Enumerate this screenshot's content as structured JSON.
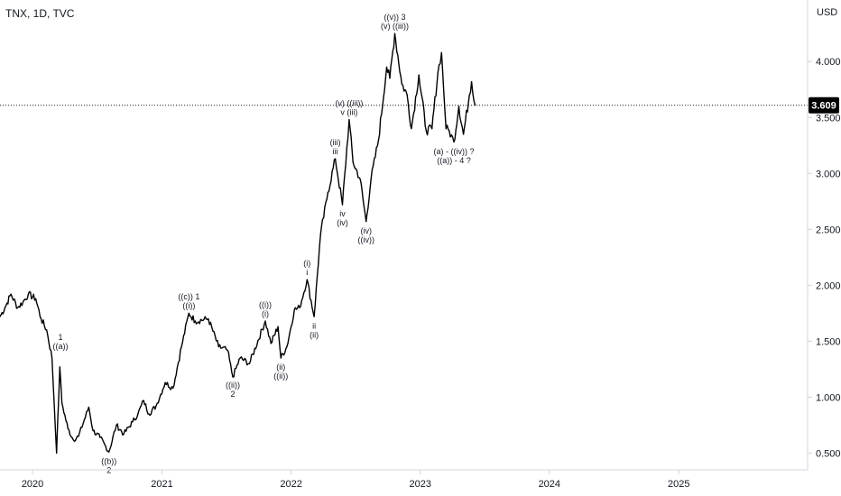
{
  "header": {
    "symbol": "TNX, 1D, TVC",
    "currency": "USD"
  },
  "last_price": {
    "value": 3.609,
    "label": "3.609"
  },
  "colors": {
    "line": "#000000",
    "axis": "#131722",
    "price_line": "#131722",
    "price_tag_bg": "#000000"
  },
  "chart_data": {
    "type": "line",
    "ylim": [
      0.35,
      4.55
    ],
    "yticks": [
      0.5,
      1.0,
      1.5,
      2.0,
      2.5,
      3.0,
      3.5,
      4.0
    ],
    "ytick_labels": [
      "0.500",
      "1.000",
      "1.500",
      "2.000",
      "2.500",
      "3.000",
      "3.500",
      "4.000"
    ],
    "xlim": [
      "2019-10-01",
      "2025-12-31"
    ],
    "xticks": [
      "2020-01-01",
      "2021-01-01",
      "2022-01-01",
      "2023-01-01",
      "2024-01-01",
      "2025-01-01"
    ],
    "xtick_labels": [
      "2020",
      "2021",
      "2022",
      "2023",
      "2024",
      "2025"
    ],
    "series": [
      {
        "points": [
          [
            "2019-10-01",
            1.72
          ],
          [
            "2019-10-15",
            1.8
          ],
          [
            "2019-11-01",
            1.92
          ],
          [
            "2019-11-20",
            1.8
          ],
          [
            "2019-12-05",
            1.85
          ],
          [
            "2019-12-20",
            1.92
          ],
          [
            "2020-01-10",
            1.88
          ],
          [
            "2020-01-25",
            1.7
          ],
          [
            "2020-02-10",
            1.6
          ],
          [
            "2020-02-25",
            1.35
          ],
          [
            "2020-03-09",
            0.5
          ],
          [
            "2020-03-18",
            1.27
          ],
          [
            "2020-03-24",
            0.95
          ],
          [
            "2020-04-10",
            0.72
          ],
          [
            "2020-04-25",
            0.62
          ],
          [
            "2020-05-10",
            0.65
          ],
          [
            "2020-06-08",
            0.91
          ],
          [
            "2020-06-20",
            0.7
          ],
          [
            "2020-07-10",
            0.64
          ],
          [
            "2020-08-04",
            0.51
          ],
          [
            "2020-08-25",
            0.75
          ],
          [
            "2020-09-15",
            0.67
          ],
          [
            "2020-10-10",
            0.78
          ],
          [
            "2020-10-25",
            0.85
          ],
          [
            "2020-11-10",
            0.97
          ],
          [
            "2020-11-25",
            0.85
          ],
          [
            "2020-12-15",
            0.92
          ],
          [
            "2021-01-10",
            1.13
          ],
          [
            "2021-02-01",
            1.08
          ],
          [
            "2021-02-25",
            1.45
          ],
          [
            "2021-03-18",
            1.75
          ],
          [
            "2021-04-05",
            1.68
          ],
          [
            "2021-05-12",
            1.7
          ],
          [
            "2021-06-10",
            1.45
          ],
          [
            "2021-07-05",
            1.42
          ],
          [
            "2021-07-20",
            1.18
          ],
          [
            "2021-08-10",
            1.35
          ],
          [
            "2021-09-05",
            1.3
          ],
          [
            "2021-10-20",
            1.68
          ],
          [
            "2021-11-05",
            1.48
          ],
          [
            "2021-11-25",
            1.63
          ],
          [
            "2021-12-03",
            1.35
          ],
          [
            "2021-12-20",
            1.45
          ],
          [
            "2022-01-10",
            1.78
          ],
          [
            "2022-01-25",
            1.8
          ],
          [
            "2022-02-15",
            2.05
          ],
          [
            "2022-03-07",
            1.72
          ],
          [
            "2022-03-25",
            2.45
          ],
          [
            "2022-04-15",
            2.83
          ],
          [
            "2022-05-06",
            3.13
          ],
          [
            "2022-05-26",
            2.72
          ],
          [
            "2022-06-14",
            3.48
          ],
          [
            "2022-06-25",
            3.1
          ],
          [
            "2022-07-15",
            2.95
          ],
          [
            "2022-08-01",
            2.57
          ],
          [
            "2022-08-15",
            2.95
          ],
          [
            "2022-09-05",
            3.3
          ],
          [
            "2022-09-28",
            3.95
          ],
          [
            "2022-10-07",
            3.85
          ],
          [
            "2022-10-21",
            4.25
          ],
          [
            "2022-11-10",
            3.8
          ],
          [
            "2022-11-25",
            3.7
          ],
          [
            "2022-12-07",
            3.4
          ],
          [
            "2022-12-28",
            3.88
          ],
          [
            "2023-01-18",
            3.38
          ],
          [
            "2023-02-03",
            3.4
          ],
          [
            "2023-02-20",
            3.9
          ],
          [
            "2023-03-02",
            4.08
          ],
          [
            "2023-03-15",
            3.4
          ],
          [
            "2023-03-24",
            3.38
          ],
          [
            "2023-04-06",
            3.28
          ],
          [
            "2023-04-20",
            3.6
          ],
          [
            "2023-05-03",
            3.35
          ],
          [
            "2023-05-20",
            3.7
          ],
          [
            "2023-05-26",
            3.82
          ],
          [
            "2023-06-05",
            3.61
          ]
        ]
      }
    ],
    "annotations": [
      {
        "date": "2020-03-20",
        "value": 1.4,
        "lines": [
          "1",
          "((a))"
        ]
      },
      {
        "date": "2020-08-04",
        "value": 0.5,
        "lines": [
          "((b))",
          "2"
        ],
        "below": true
      },
      {
        "date": "2021-03-18",
        "value": 1.76,
        "lines": [
          "((c)) 1",
          "((i))"
        ]
      },
      {
        "date": "2021-07-20",
        "value": 1.18,
        "lines": [
          "((ii))",
          "2"
        ],
        "below": true
      },
      {
        "date": "2021-10-20",
        "value": 1.69,
        "lines": [
          "((i))",
          "(i)"
        ]
      },
      {
        "date": "2021-12-03",
        "value": 1.34,
        "lines": [
          "(ii)",
          "((ii))"
        ],
        "below": true
      },
      {
        "date": "2022-02-15",
        "value": 2.06,
        "lines": [
          "(i)",
          "i"
        ]
      },
      {
        "date": "2022-03-07",
        "value": 1.71,
        "lines": [
          "ii",
          "(ii)"
        ],
        "below": true
      },
      {
        "date": "2022-05-06",
        "value": 3.14,
        "lines": [
          "(iii)",
          "iii"
        ]
      },
      {
        "date": "2022-05-26",
        "value": 2.71,
        "lines": [
          "iv",
          "(iv)"
        ],
        "below": true
      },
      {
        "date": "2022-06-14",
        "value": 3.49,
        "lines": [
          "(v) ((iii))",
          "v (iii)"
        ]
      },
      {
        "date": "2022-08-01",
        "value": 2.56,
        "lines": [
          "(iv)",
          "((iv))"
        ],
        "below": true
      },
      {
        "date": "2022-10-21",
        "value": 4.26,
        "lines": [
          "((v)) 3",
          "(v) ((iii))"
        ]
      },
      {
        "date": "2023-04-06",
        "value": 3.27,
        "lines": [
          "(a) - ((iv)) ?",
          "((a)) - 4 ?"
        ],
        "below": true
      }
    ]
  }
}
